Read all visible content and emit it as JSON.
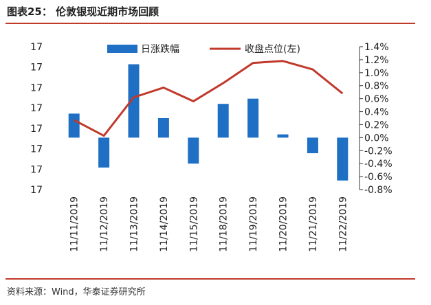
{
  "header": {
    "title": "图表25：  伦敦银现近期市场回顾"
  },
  "footer": {
    "source": "资料来源：Wind，华泰证券研究所"
  },
  "colors": {
    "bar": "#1f6fc5",
    "line": "#c0392b",
    "rule": "#c0392b"
  },
  "chart_data": {
    "type": "bar+line",
    "categories": [
      "11/11/2019",
      "11/12/2019",
      "11/13/2019",
      "11/14/2019",
      "11/15/2019",
      "11/18/2019",
      "11/19/2019",
      "11/20/2019",
      "11/21/2019",
      "11/22/2019"
    ],
    "series": [
      {
        "name": "日涨跌幅",
        "type": "bar",
        "axis": "right",
        "values": [
          0.37,
          -0.46,
          1.13,
          0.3,
          -0.4,
          0.52,
          0.6,
          0.05,
          -0.24,
          -0.66
        ]
      },
      {
        "name": "收盘点位(左)",
        "type": "line",
        "axis": "left",
        "values": [
          0.27,
          0.03,
          0.62,
          0.77,
          0.56,
          0.84,
          1.15,
          1.18,
          1.05,
          0.68
        ]
      }
    ],
    "left_axis": {
      "tick_labels": [
        "17",
        "17",
        "17",
        "17",
        "17",
        "17",
        "17",
        "17"
      ]
    },
    "right_axis": {
      "ylim": [
        -0.8,
        1.4
      ],
      "ticks": [
        1.4,
        1.2,
        1.0,
        0.8,
        0.6,
        0.4,
        0.2,
        0.0,
        -0.2,
        -0.4,
        -0.6,
        -0.8
      ],
      "tick_labels": [
        "1.4%",
        "1.2%",
        "1.0%",
        "0.8%",
        "0.6%",
        "0.4%",
        "0.2%",
        "0.0%",
        "-0.2%",
        "-0.4%",
        "-0.6%",
        "-0.8%"
      ]
    },
    "legend_position": "top",
    "grid": false
  }
}
